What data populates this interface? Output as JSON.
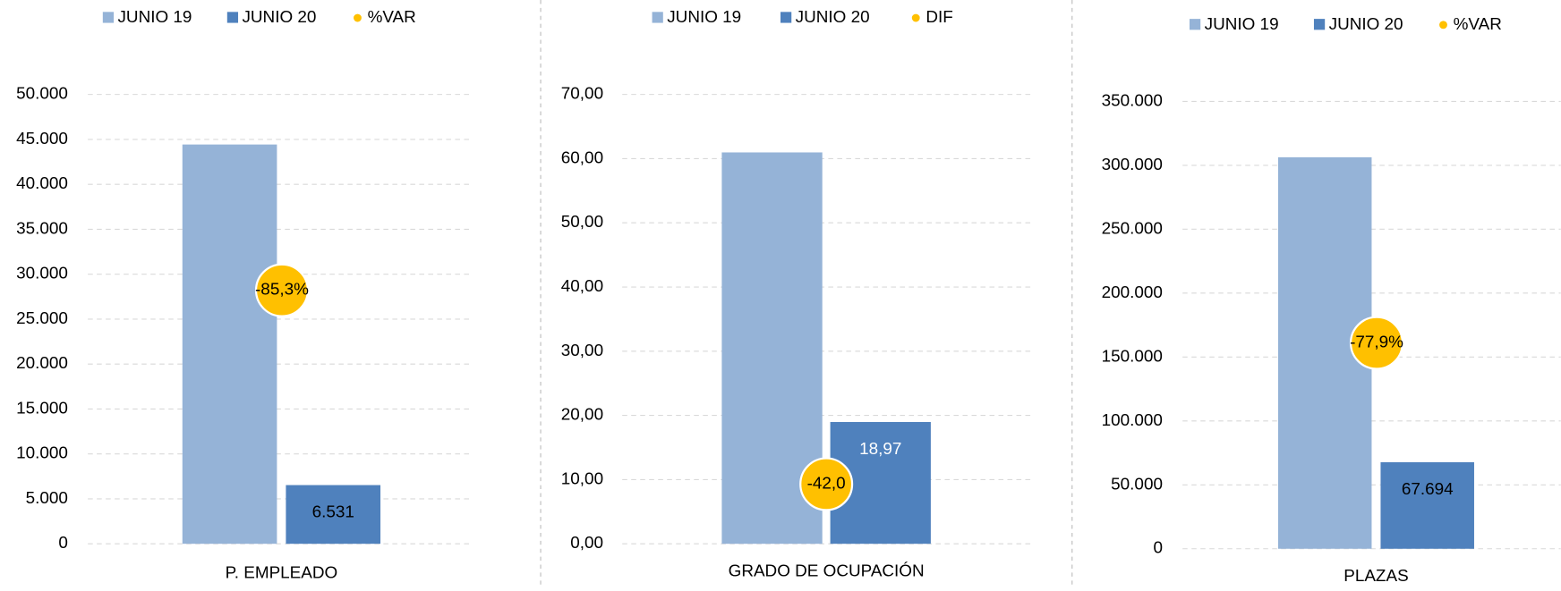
{
  "chart_data": [
    {
      "type": "bar",
      "categories": [
        "P. EMPLEADO"
      ],
      "series": [
        {
          "name": "JUNIO 19",
          "color": "#95b3d7",
          "values": [
            44430
          ]
        },
        {
          "name": "JUNIO 20",
          "color": "#4f81bd",
          "values": [
            6531
          ],
          "value_labels": [
            "6.531"
          ]
        },
        {
          "name": "%VAR",
          "color": "#ffc000",
          "values": [
            -85.3
          ],
          "value_labels": [
            "-85,3%"
          ]
        }
      ],
      "ylim": [
        0,
        50000
      ],
      "yticks": [
        0,
        {
          "value": 5000,
          "label": "5.000"
        },
        {
          "value": 10000,
          "label": "10.000"
        },
        {
          "value": 15000,
          "label": "15.000"
        },
        {
          "value": 20000,
          "label": "20.000"
        },
        {
          "value": 25000,
          "label": "25.000"
        },
        {
          "value": 30000,
          "label": "30.000"
        },
        {
          "value": 35000,
          "label": "35.000"
        },
        {
          "value": 40000,
          "label": "40.000"
        },
        {
          "value": 45000,
          "label": "45.000"
        },
        {
          "value": 50000,
          "label": "50.000"
        }
      ],
      "grid": true
    },
    {
      "type": "bar",
      "categories": [
        "GRADO DE OCUPACIÓN"
      ],
      "series": [
        {
          "name": "JUNIO 19",
          "color": "#95b3d7",
          "values": [
            60.97
          ]
        },
        {
          "name": "JUNIO 20",
          "color": "#4f81bd",
          "values": [
            18.97
          ],
          "value_labels": [
            "18,97"
          ]
        },
        {
          "name": "DIF",
          "color": "#ffc000",
          "values": [
            -42.0
          ],
          "value_labels": [
            "-42,0"
          ]
        }
      ],
      "ylim": [
        0,
        70
      ],
      "yticks": [
        {
          "value": 0,
          "label": "0,00"
        },
        {
          "value": 10,
          "label": "10,00"
        },
        {
          "value": 20,
          "label": "20,00"
        },
        {
          "value": 30,
          "label": "30,00"
        },
        {
          "value": 40,
          "label": "40,00"
        },
        {
          "value": 50,
          "label": "50,00"
        },
        {
          "value": 60,
          "label": "60,00"
        },
        {
          "value": 70,
          "label": "70,00"
        }
      ],
      "grid": true
    },
    {
      "type": "bar",
      "categories": [
        "PLAZAS"
      ],
      "series": [
        {
          "name": "JUNIO 19",
          "color": "#95b3d7",
          "values": [
            306300
          ]
        },
        {
          "name": "JUNIO 20",
          "color": "#4f81bd",
          "values": [
            67694
          ],
          "value_labels": [
            "67.694"
          ]
        },
        {
          "name": "%VAR",
          "color": "#ffc000",
          "values": [
            -77.9
          ],
          "value_labels": [
            "-77,9%"
          ]
        }
      ],
      "ylim": [
        0,
        350000
      ],
      "yticks": [
        0,
        {
          "value": 50000,
          "label": "50.000"
        },
        {
          "value": 100000,
          "label": "100.000"
        },
        {
          "value": 150000,
          "label": "150.000"
        },
        {
          "value": 200000,
          "label": "200.000"
        },
        {
          "value": 250000,
          "label": "250.000"
        },
        {
          "value": 300000,
          "label": "300.000"
        },
        {
          "value": 350000,
          "label": "350.000"
        }
      ],
      "grid": true
    }
  ]
}
